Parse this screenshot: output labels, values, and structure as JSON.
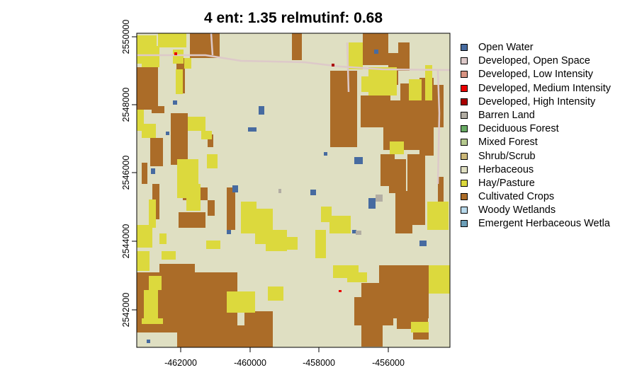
{
  "title": "4 ent: 1.35 relmutinf: 0.68",
  "axes": {
    "x_ticks": [
      "-462000",
      "-460000",
      "-458000",
      "-456000"
    ],
    "y_ticks": [
      "2542000",
      "2544000",
      "2546000",
      "2548000",
      "2550000"
    ]
  },
  "legend": [
    {
      "label": "Open Water",
      "color": "#476ba0"
    },
    {
      "label": "Developed, Open Space",
      "color": "#ddc9c9"
    },
    {
      "label": "Developed, Low Intensity",
      "color": "#d89382"
    },
    {
      "label": "Developed, Medium Intensity",
      "color": "#ea0000"
    },
    {
      "label": "Developed, High Intensity",
      "color": "#aa0000"
    },
    {
      "label": "Barren Land",
      "color": "#b2ada3"
    },
    {
      "label": "Deciduous Forest",
      "color": "#68aa63"
    },
    {
      "label": "Mixed Forest",
      "color": "#b5c98e"
    },
    {
      "label": "Shrub/Scrub",
      "color": "#ccb879"
    },
    {
      "label": "Herbaceous",
      "color": "#dfdfc2"
    },
    {
      "label": "Hay/Pasture",
      "color": "#dcd93d"
    },
    {
      "label": "Cultivated Crops",
      "color": "#ab6c28"
    },
    {
      "label": "Woody Wetlands",
      "color": "#b8d9eb"
    },
    {
      "label": "Emergent Herbaceous Wetla",
      "color": "#6c9fb8"
    }
  ],
  "colors": {
    "herbaceous": "#dfdfc2",
    "cultivated": "#ab6c28",
    "hay": "#dcd93d",
    "water": "#476ba0",
    "road": "#ddc9c9"
  }
}
